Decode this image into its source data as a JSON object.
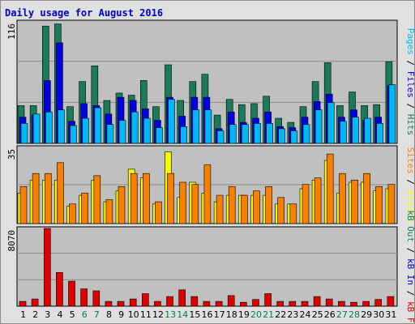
{
  "chart_data": {
    "type": "bar",
    "title": "Daily usage for August 2016",
    "colors": {
      "hits": "#1a7a5a",
      "files": "#0000e0",
      "pages": "#00b8f8",
      "visits": "#f8f800",
      "sites": "#f88000",
      "kb_f": "#e00000",
      "kb_in": "#0000c0",
      "kb_out": "#0f8060",
      "weekend": "#008040",
      "weekday": "#000000",
      "panel_bg": "#c0c0c0",
      "frame_bg": "#e0e0e0",
      "title": "#0000c8"
    },
    "days": [
      "1",
      "2",
      "3",
      "4",
      "5",
      "6",
      "7",
      "8",
      "9",
      "10",
      "11",
      "12",
      "13",
      "14",
      "15",
      "16",
      "17",
      "18",
      "19",
      "20",
      "21",
      "22",
      "23",
      "24",
      "25",
      "26",
      "27",
      "28",
      "29",
      "30",
      "31"
    ],
    "weekend_days": [
      "6",
      "7",
      "13",
      "14",
      "20",
      "21",
      "27",
      "28"
    ],
    "panels": [
      {
        "name": "hits-files-pages",
        "y_tick_label": "116",
        "ylim": [
          0,
          116
        ],
        "legend": [
          {
            "label": "Hits",
            "color_key": "hits"
          },
          {
            "label": "Files",
            "color_key": "files"
          },
          {
            "label": "Pages",
            "color_key": "pages"
          }
        ],
        "separator": " / ",
        "series": [
          {
            "name": "Hits",
            "color_key": "hits",
            "values": [
              36,
              36,
              112,
              114,
              35,
              59,
              74,
              41,
              48,
              46,
              60,
              35,
              75,
              41,
              59,
              66,
              27,
              42,
              37,
              38,
              45,
              24,
              20,
              35,
              59,
              77,
              36,
              49,
              36,
              37,
              78
            ]
          },
          {
            "name": "Files",
            "color_key": "files",
            "values": [
              25,
              27,
              60,
              96,
              21,
              38,
              36,
              28,
              44,
              41,
              33,
              22,
              44,
              26,
              44,
              44,
              14,
              30,
              20,
              24,
              30,
              16,
              15,
              25,
              40,
              47,
              25,
              32,
              22,
              25,
              55
            ]
          },
          {
            "name": "Pages",
            "color_key": "pages",
            "values": [
              19,
              28,
              30,
              32,
              17,
              24,
              34,
              18,
              22,
              30,
              24,
              15,
              42,
              16,
              32,
              32,
              12,
              18,
              18,
              19,
              19,
              14,
              12,
              18,
              32,
              39,
              21,
              25,
              24,
              19,
              56
            ]
          }
        ]
      },
      {
        "name": "visits-sites",
        "y_tick_label": "35",
        "ylim": [
          0,
          35
        ],
        "legend": [
          {
            "label": "Visits",
            "color_key": "visits"
          },
          {
            "label": "Sites",
            "color_key": "sites"
          }
        ],
        "separator": " / ",
        "series": [
          {
            "name": "Visits",
            "color_key": "visits",
            "values": [
              14,
              20,
              20,
              20,
              8,
              13,
              20,
              10,
              15,
              25,
              21,
              9,
              33,
              12,
              19,
              14,
              10,
              13,
              13,
              13,
              13,
              9,
              9,
              16,
              20,
              29,
              14,
              19,
              19,
              15,
              16
            ]
          },
          {
            "name": "Sites",
            "color_key": "sites",
            "values": [
              17,
              23,
              23,
              28,
              9,
              14,
              22,
              11,
              17,
              23,
              23,
              10,
              23,
              19,
              18,
              27,
              13,
              17,
              13,
              15,
              17,
              12,
              9,
              18,
              21,
              32,
              23,
              20,
              23,
              17,
              18
            ]
          }
        ]
      },
      {
        "name": "kbf-kbin-kbout",
        "y_tick_label": "8070",
        "ylim": [
          0,
          8070
        ],
        "legend": [
          {
            "label": "kB F",
            "color_key": "kb_f"
          },
          {
            "label": "kB In",
            "color_key": "kb_in"
          },
          {
            "label": "kB Out",
            "color_key": "kb_out"
          }
        ],
        "separator": " / ",
        "series": [
          {
            "name": "kB F",
            "color_key": "kb_f",
            "values": [
              500,
              750,
              8070,
              3500,
              2600,
              1800,
              1600,
              500,
              500,
              750,
              1300,
              500,
              1000,
              1700,
              1000,
              500,
              500,
              1100,
              400,
              700,
              1300,
              500,
              500,
              500,
              1000,
              750,
              500,
              400,
              500,
              700,
              1000
            ]
          }
        ]
      }
    ]
  }
}
